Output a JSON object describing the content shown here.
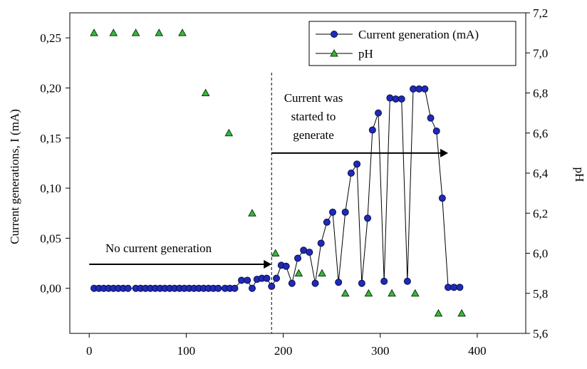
{
  "chart_data": {
    "type": "scatter",
    "xlim": [
      -20,
      450
    ],
    "x_ticks": [
      "0",
      "100",
      "200",
      "300",
      "400"
    ],
    "x_tick_values": [
      0,
      100,
      200,
      300,
      400
    ],
    "left_axis": {
      "label": "Current generations, I (mA)",
      "ylim": [
        -0.045,
        0.275
      ],
      "tick_values": [
        0.0,
        0.05,
        0.1,
        0.15,
        0.2,
        0.25
      ],
      "ticks": [
        "0,00",
        "0,05",
        "0,10",
        "0,15",
        "0,20",
        "0,25"
      ]
    },
    "right_axis": {
      "label": "pH",
      "ylim": [
        5.6,
        7.2
      ],
      "tick_values": [
        5.6,
        5.8,
        6.0,
        6.2,
        6.4,
        6.6,
        6.8,
        7.0,
        7.2
      ],
      "ticks": [
        "5,6",
        "5,8",
        "6,0",
        "6,2",
        "6,4",
        "6,6",
        "6,8",
        "7,0",
        "7,2"
      ]
    },
    "series": [
      {
        "name": "Current generation (mA)",
        "axis": "left",
        "marker": "circle",
        "line": true,
        "color": "#1f2ab8",
        "x": [
          5,
          10,
          15,
          20,
          25,
          30,
          35,
          40,
          48,
          53,
          58,
          63,
          68,
          73,
          78,
          83,
          88,
          93,
          98,
          103,
          108,
          113,
          118,
          123,
          128,
          133,
          140,
          145,
          150,
          157,
          163,
          168,
          173,
          178,
          183,
          188,
          193,
          198,
          203,
          209,
          215,
          221,
          227,
          233,
          239,
          245,
          251,
          257,
          264,
          270,
          276,
          281,
          287,
          292,
          298,
          304,
          310,
          316,
          322,
          328,
          334,
          340,
          346,
          352,
          358,
          364,
          370,
          376,
          382
        ],
        "y": [
          0.0,
          0.0,
          0.0,
          0.0,
          0.0,
          0.0,
          0.0,
          0.0,
          0.0,
          0.0,
          0.0,
          0.0,
          0.0,
          0.0,
          0.0,
          0.0,
          0.0,
          0.0,
          0.0,
          0.0,
          0.0,
          0.0,
          0.0,
          0.0,
          0.0,
          0.0,
          0.0,
          0.0,
          0.0,
          0.008,
          0.008,
          0.0,
          0.009,
          0.01,
          0.01,
          0.002,
          0.01,
          0.023,
          0.022,
          0.005,
          0.03,
          0.038,
          0.036,
          0.005,
          0.045,
          0.066,
          0.076,
          0.006,
          0.076,
          0.115,
          0.124,
          0.005,
          0.07,
          0.158,
          0.175,
          0.007,
          0.19,
          0.189,
          0.189,
          0.007,
          0.199,
          0.199,
          0.199,
          0.17,
          0.157,
          0.09,
          0.001,
          0.001,
          0.001
        ]
      },
      {
        "name": "pH",
        "axis": "right",
        "marker": "triangle",
        "line": false,
        "color": "#36b83a",
        "x": [
          5,
          25,
          48,
          72,
          96,
          120,
          144,
          168,
          192,
          216,
          240,
          264,
          288,
          312,
          336,
          360,
          384
        ],
        "y": [
          7.1,
          7.1,
          7.1,
          7.1,
          7.1,
          6.8,
          6.6,
          6.2,
          6.0,
          5.9,
          5.9,
          5.8,
          5.8,
          5.8,
          5.8,
          5.7,
          5.7
        ]
      }
    ],
    "vline": {
      "x": 188
    },
    "annotations": [
      {
        "id": "no-current",
        "lines": [
          "No current  generation"
        ]
      },
      {
        "id": "current-started",
        "lines": [
          "Current  was",
          "started to",
          "generate"
        ]
      }
    ],
    "arrows": [
      {
        "id": "no-current-arrow",
        "x_from": 0,
        "x_to": 188,
        "left_y": 0.024
      },
      {
        "id": "current-started-arrow",
        "x_from": 188,
        "x_to": 370,
        "left_y": 0.135
      }
    ],
    "legend": {
      "position": "top-right",
      "entries": [
        "Current generation (mA)",
        "pH"
      ]
    },
    "grid": false
  }
}
